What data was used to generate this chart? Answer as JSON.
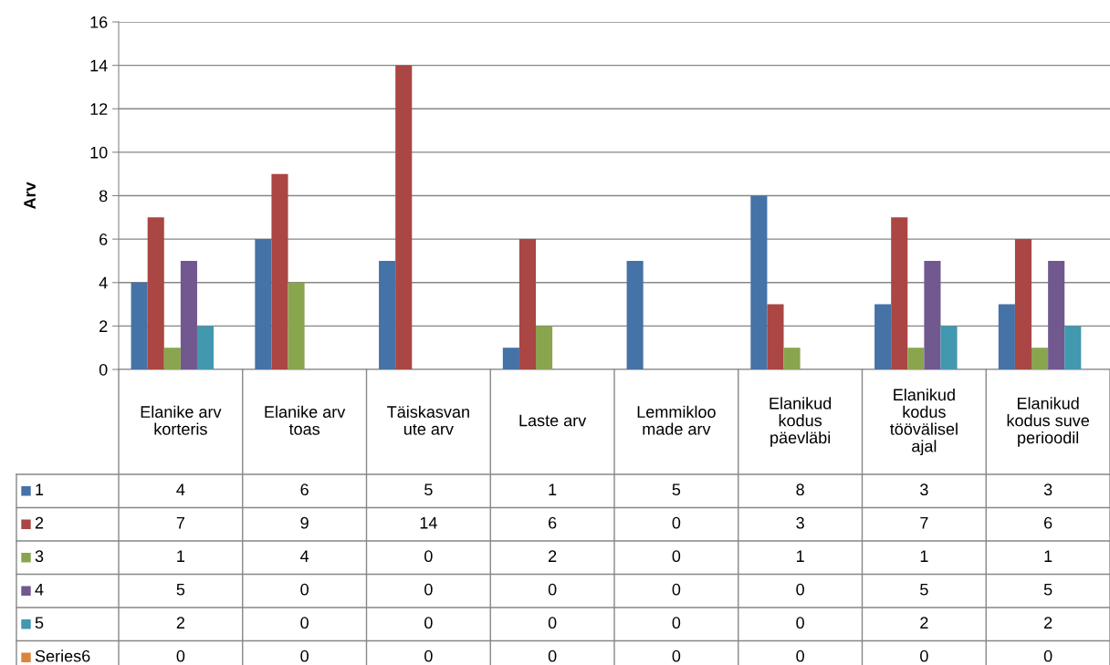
{
  "chart_data": {
    "type": "bar",
    "ylabel": "Arv",
    "categories": [
      "Elanike arv\nkorteris",
      "Elanike arv\ntoas",
      "Täiskasvan\nute arv",
      "Laste arv",
      "Lemmikloo\nmade arv",
      "Elanikud\nkodus\npäevläbi",
      "Elanikud\nkodus\ntöövälisel\najal",
      "Elanikud\nkodus suve\nperioodil"
    ],
    "series": [
      {
        "name": "1",
        "color": "#4572a7",
        "values": [
          4,
          6,
          5,
          1,
          5,
          8,
          3,
          3
        ]
      },
      {
        "name": "2",
        "color": "#aa4643",
        "values": [
          7,
          9,
          14,
          6,
          0,
          3,
          7,
          6
        ]
      },
      {
        "name": "3",
        "color": "#89a54e",
        "values": [
          1,
          4,
          0,
          2,
          0,
          1,
          1,
          1
        ]
      },
      {
        "name": "4",
        "color": "#71588f",
        "values": [
          5,
          0,
          0,
          0,
          0,
          0,
          5,
          5
        ]
      },
      {
        "name": "5",
        "color": "#4198af",
        "values": [
          2,
          0,
          0,
          0,
          0,
          0,
          2,
          2
        ]
      },
      {
        "name": "Series6",
        "color": "#db843d",
        "values": [
          0,
          0,
          0,
          0,
          0,
          0,
          0,
          0
        ]
      }
    ],
    "ylim": [
      0,
      16
    ],
    "yticks": [
      0,
      2,
      4,
      6,
      8,
      10,
      12,
      14,
      16
    ],
    "grid": "y",
    "legend": "bottom",
    "data_labels": true
  }
}
